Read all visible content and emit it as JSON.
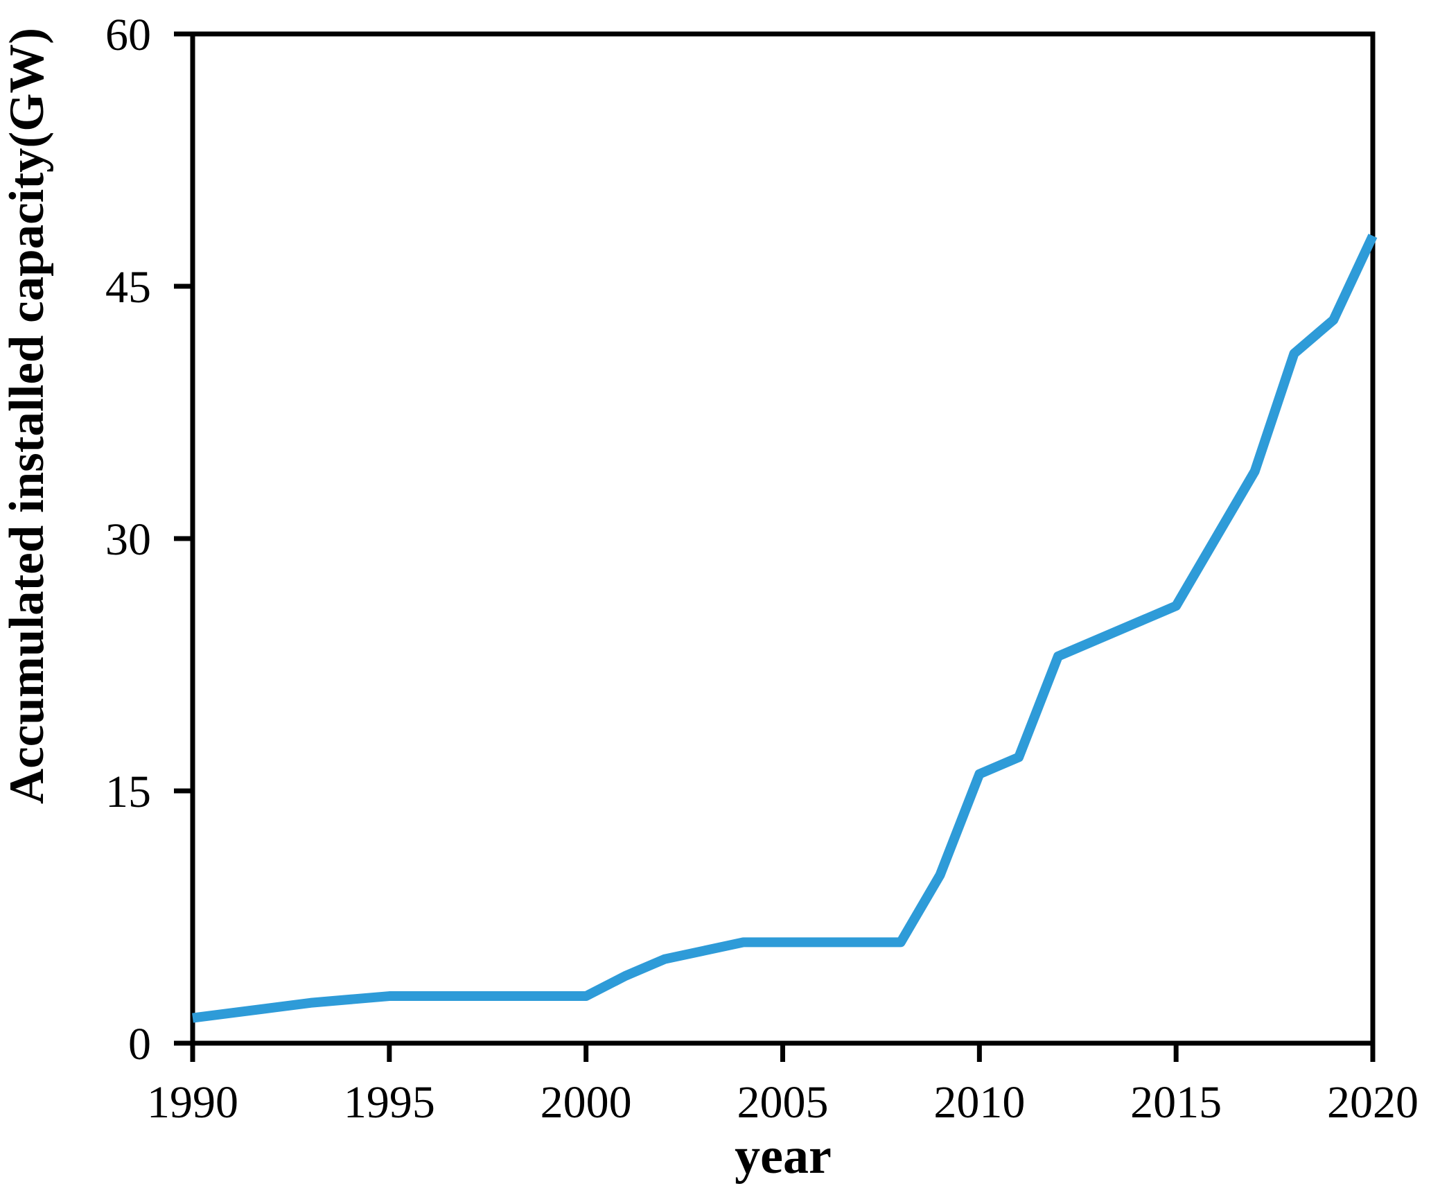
{
  "chart_data": {
    "type": "line",
    "title": "",
    "xlabel": "year",
    "ylabel": "Accumulated installed capacity(GW)",
    "x": [
      1990,
      1991,
      1992,
      1993,
      1994,
      1995,
      1996,
      1997,
      1998,
      1999,
      2000,
      2001,
      2002,
      2003,
      2004,
      2005,
      2006,
      2007,
      2008,
      2009,
      2010,
      2011,
      2012,
      2013,
      2014,
      2015,
      2016,
      2017,
      2018,
      2019,
      2020
    ],
    "series": [
      {
        "name": "Accumulated installed capacity",
        "color": "#2E9BD8",
        "values": [
          1.5,
          1.8,
          2.1,
          2.4,
          2.6,
          2.8,
          2.8,
          2.8,
          2.8,
          2.8,
          2.8,
          4.0,
          5.0,
          5.5,
          6.0,
          6.0,
          6.0,
          6.0,
          6.0,
          10.0,
          16.0,
          17.0,
          23.0,
          24.0,
          25.0,
          26.0,
          30.0,
          34.0,
          41.0,
          43.0,
          48.0
        ]
      }
    ],
    "xlim": [
      1990,
      2020
    ],
    "ylim": [
      0,
      60
    ],
    "xticks": [
      1990,
      1995,
      2000,
      2005,
      2010,
      2015,
      2020
    ],
    "yticks": [
      0,
      15,
      30,
      45,
      60
    ],
    "grid": false,
    "legend": "none",
    "line_width": 14,
    "axis_color": "#000000"
  }
}
